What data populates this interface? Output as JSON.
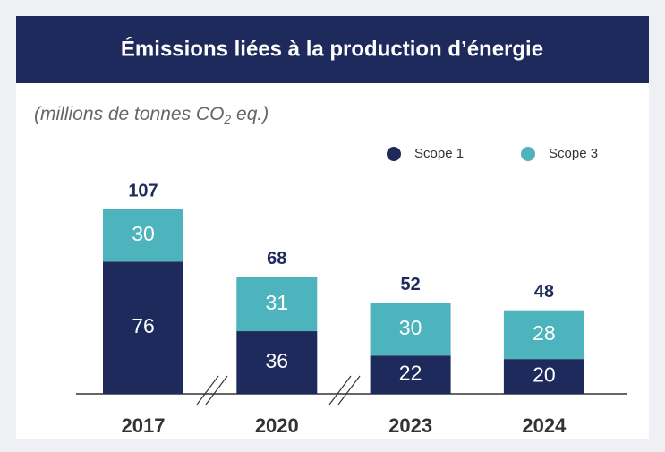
{
  "chart_data": {
    "type": "stacked_bar",
    "title": "Émissions liées à la production d’énergie",
    "subtitle": [
      "(millions de tonnes CO",
      "2",
      " eq.)"
    ],
    "categories": [
      "2017",
      "2020",
      "2023",
      "2024"
    ],
    "series": [
      {
        "name": "Scope 1",
        "color": "#1f2a5c",
        "values": [
          76,
          36,
          22,
          20
        ]
      },
      {
        "name": "Scope 3",
        "color": "#4db3bd",
        "values": [
          30,
          31,
          30,
          28
        ]
      }
    ],
    "totals": [
      107,
      68,
      52,
      48
    ]
  }
}
